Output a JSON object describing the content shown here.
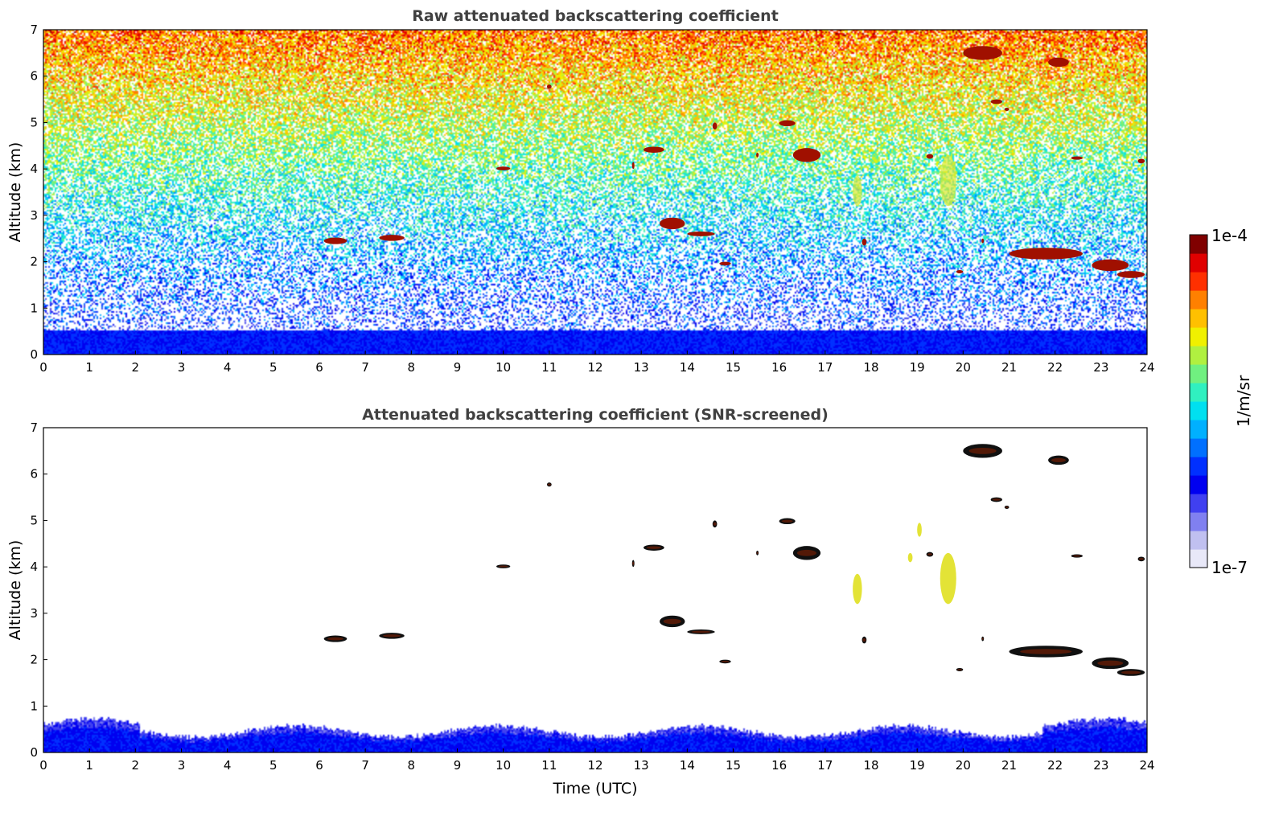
{
  "chart_data": [
    {
      "type": "heatmap",
      "title": "Raw attenuated backscattering coefficient",
      "xlabel": "",
      "ylabel": "Altitude (km)",
      "xlim": [
        0,
        24
      ],
      "ylim": [
        0,
        7
      ],
      "x_ticks": [
        "0",
        "1",
        "2",
        "3",
        "4",
        "5",
        "6",
        "7",
        "8",
        "9",
        "10",
        "11",
        "12",
        "13",
        "14",
        "15",
        "16",
        "17",
        "18",
        "19",
        "20",
        "21",
        "22",
        "23",
        "24"
      ],
      "y_ticks": [
        "0",
        "1",
        "2",
        "3",
        "4",
        "5",
        "6",
        "7"
      ],
      "background": "noisy",
      "cloud_features": [
        {
          "x": [
            6.1,
            6.6
          ],
          "y": [
            2.38,
            2.52
          ]
        },
        {
          "x": [
            7.3,
            7.85
          ],
          "y": [
            2.45,
            2.58
          ]
        },
        {
          "x": [
            9.85,
            10.15
          ],
          "y": [
            3.97,
            4.05
          ]
        },
        {
          "x": [
            10.95,
            11.05
          ],
          "y": [
            5.73,
            5.82
          ]
        },
        {
          "x": [
            12.8,
            12.85
          ],
          "y": [
            4.0,
            4.15
          ]
        },
        {
          "x": [
            13.05,
            13.5
          ],
          "y": [
            4.35,
            4.48
          ]
        },
        {
          "x": [
            13.4,
            13.95
          ],
          "y": [
            2.7,
            2.95
          ]
        },
        {
          "x": [
            14.0,
            14.6
          ],
          "y": [
            2.55,
            2.65
          ]
        },
        {
          "x": [
            14.55,
            14.65
          ],
          "y": [
            4.85,
            5.0
          ]
        },
        {
          "x": [
            14.7,
            14.95
          ],
          "y": [
            1.92,
            2.0
          ]
        },
        {
          "x": [
            15.5,
            15.55
          ],
          "y": [
            4.25,
            4.35
          ]
        },
        {
          "x": [
            16.0,
            16.35
          ],
          "y": [
            4.92,
            5.05
          ]
        },
        {
          "x": [
            16.3,
            16.9
          ],
          "y": [
            4.15,
            4.45
          ]
        },
        {
          "x": [
            17.8,
            17.9
          ],
          "y": [
            2.35,
            2.5
          ]
        },
        {
          "x": [
            19.2,
            19.35
          ],
          "y": [
            4.22,
            4.32
          ]
        },
        {
          "x": [
            19.85,
            20.0
          ],
          "y": [
            1.75,
            1.82
          ]
        },
        {
          "x": [
            20.0,
            20.85
          ],
          "y": [
            6.35,
            6.65
          ]
        },
        {
          "x": [
            20.6,
            20.85
          ],
          "y": [
            5.4,
            5.5
          ]
        },
        {
          "x": [
            20.9,
            21.0
          ],
          "y": [
            5.25,
            5.32
          ]
        },
        {
          "x": [
            20.4,
            20.45
          ],
          "y": [
            2.4,
            2.5
          ]
        },
        {
          "x": [
            21.0,
            22.6
          ],
          "y": [
            2.05,
            2.3
          ]
        },
        {
          "x": [
            21.85,
            22.3
          ],
          "y": [
            6.2,
            6.4
          ]
        },
        {
          "x": [
            22.35,
            22.6
          ],
          "y": [
            4.2,
            4.27
          ]
        },
        {
          "x": [
            22.8,
            23.6
          ],
          "y": [
            1.8,
            2.05
          ]
        },
        {
          "x": [
            23.35,
            23.95
          ],
          "y": [
            1.65,
            1.8
          ]
        },
        {
          "x": [
            23.8,
            23.95
          ],
          "y": [
            4.12,
            4.22
          ]
        }
      ],
      "ice_features": [
        {
          "x": [
            17.6,
            17.8
          ],
          "y": [
            3.2,
            3.85
          ]
        },
        {
          "x": [
            19.5,
            19.85
          ],
          "y": [
            3.2,
            4.3
          ]
        },
        {
          "x": [
            19.0,
            19.1
          ],
          "y": [
            4.65,
            4.95
          ]
        },
        {
          "x": [
            18.8,
            18.9
          ],
          "y": [
            4.1,
            4.3
          ]
        }
      ]
    },
    {
      "type": "heatmap",
      "title": "Attenuated backscattering coefficient (SNR-screened)",
      "xlabel": "Time (UTC)",
      "ylabel": "Altitude (km)",
      "xlim": [
        0,
        24
      ],
      "ylim": [
        0,
        7
      ],
      "x_ticks": [
        "0",
        "1",
        "2",
        "3",
        "4",
        "5",
        "6",
        "7",
        "8",
        "9",
        "10",
        "11",
        "12",
        "13",
        "14",
        "15",
        "16",
        "17",
        "18",
        "19",
        "20",
        "21",
        "22",
        "23",
        "24"
      ],
      "y_ticks": [
        "0",
        "1",
        "2",
        "3",
        "4",
        "5",
        "6",
        "7"
      ],
      "background": "screened",
      "cloud_features": [
        {
          "x": [
            6.1,
            6.6
          ],
          "y": [
            2.38,
            2.52
          ]
        },
        {
          "x": [
            7.3,
            7.85
          ],
          "y": [
            2.45,
            2.58
          ]
        },
        {
          "x": [
            9.85,
            10.15
          ],
          "y": [
            3.97,
            4.05
          ]
        },
        {
          "x": [
            10.95,
            11.05
          ],
          "y": [
            5.73,
            5.82
          ]
        },
        {
          "x": [
            12.8,
            12.85
          ],
          "y": [
            4.0,
            4.15
          ]
        },
        {
          "x": [
            13.05,
            13.5
          ],
          "y": [
            4.35,
            4.48
          ]
        },
        {
          "x": [
            13.4,
            13.95
          ],
          "y": [
            2.7,
            2.95
          ]
        },
        {
          "x": [
            14.0,
            14.6
          ],
          "y": [
            2.55,
            2.65
          ]
        },
        {
          "x": [
            14.55,
            14.65
          ],
          "y": [
            4.85,
            5.0
          ]
        },
        {
          "x": [
            14.7,
            14.95
          ],
          "y": [
            1.92,
            2.0
          ]
        },
        {
          "x": [
            15.5,
            15.55
          ],
          "y": [
            4.25,
            4.35
          ]
        },
        {
          "x": [
            16.0,
            16.35
          ],
          "y": [
            4.92,
            5.05
          ]
        },
        {
          "x": [
            16.3,
            16.9
          ],
          "y": [
            4.15,
            4.45
          ]
        },
        {
          "x": [
            17.8,
            17.9
          ],
          "y": [
            2.35,
            2.5
          ]
        },
        {
          "x": [
            19.2,
            19.35
          ],
          "y": [
            4.22,
            4.32
          ]
        },
        {
          "x": [
            19.85,
            20.0
          ],
          "y": [
            1.75,
            1.82
          ]
        },
        {
          "x": [
            20.0,
            20.85
          ],
          "y": [
            6.35,
            6.65
          ]
        },
        {
          "x": [
            20.6,
            20.85
          ],
          "y": [
            5.4,
            5.5
          ]
        },
        {
          "x": [
            20.9,
            21.0
          ],
          "y": [
            5.25,
            5.32
          ]
        },
        {
          "x": [
            20.4,
            20.45
          ],
          "y": [
            2.4,
            2.5
          ]
        },
        {
          "x": [
            21.0,
            22.6
          ],
          "y": [
            2.05,
            2.3
          ]
        },
        {
          "x": [
            21.85,
            22.3
          ],
          "y": [
            6.2,
            6.4
          ]
        },
        {
          "x": [
            22.35,
            22.6
          ],
          "y": [
            4.2,
            4.27
          ]
        },
        {
          "x": [
            22.8,
            23.6
          ],
          "y": [
            1.8,
            2.05
          ]
        },
        {
          "x": [
            23.35,
            23.95
          ],
          "y": [
            1.65,
            1.8
          ]
        },
        {
          "x": [
            23.8,
            23.95
          ],
          "y": [
            4.12,
            4.22
          ]
        }
      ],
      "ice_features": [
        {
          "x": [
            17.6,
            17.8
          ],
          "y": [
            3.2,
            3.85
          ]
        },
        {
          "x": [
            19.5,
            19.85
          ],
          "y": [
            3.2,
            4.3
          ]
        },
        {
          "x": [
            19.0,
            19.1
          ],
          "y": [
            4.65,
            4.95
          ]
        },
        {
          "x": [
            18.8,
            18.9
          ],
          "y": [
            4.1,
            4.3
          ]
        }
      ]
    }
  ],
  "colorbar": {
    "label": "1/m/sr",
    "max_label": "1e-4",
    "min_label": "1e-7",
    "colors": [
      "#e8e8f8",
      "#c0c0f0",
      "#8080f0",
      "#4040f0",
      "#0000f0",
      "#0030ff",
      "#0070ff",
      "#00b0ff",
      "#00e0f0",
      "#30f0c0",
      "#70f080",
      "#b0f040",
      "#f0f000",
      "#ffc000",
      "#ff8000",
      "#ff3000",
      "#e00000",
      "#800000"
    ]
  }
}
